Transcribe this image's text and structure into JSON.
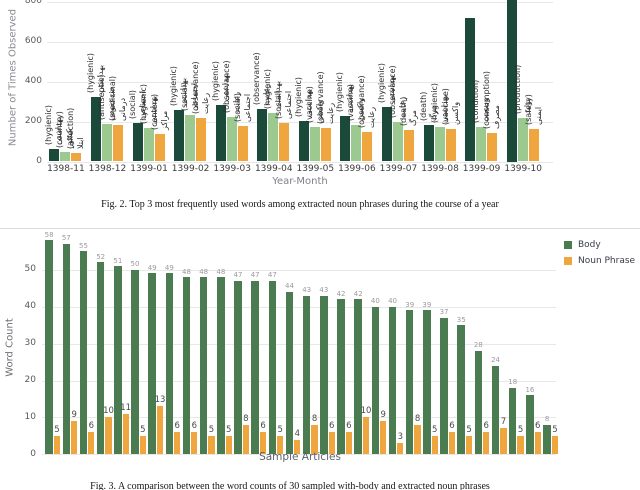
{
  "chart_data": [
    {
      "type": "bar",
      "title": "Fig. 2. Top 3 most frequently used words among extracted noun phrases during the course of a year",
      "xlabel": "Year-Month",
      "ylabel": "Number of Times Observed",
      "yticks": [
        0,
        200,
        400,
        600,
        800
      ],
      "ylim": [
        0,
        810
      ],
      "grid": true,
      "legend_position": "none",
      "bar_colors": [
        "#1c4a3a",
        "#9cc98f",
        "#f0a63e"
      ],
      "groups": [
        {
          "month": "1398-11",
          "bars": [
            {
              "word": "بهداشتی",
              "translation": "(hygienic)",
              "value": 62
            },
            {
              "word": "کشور",
              "translation": "(country)",
              "value": 46
            },
            {
              "word": "ابتلا",
              "translation": "(affection)",
              "value": 45
            }
          ]
        },
        {
          "month": "1398-12",
          "bars": [
            {
              "word": "بهداشتی",
              "translation": "(hygienic)",
              "value": 322
            },
            {
              "word": "ضدعفونی",
              "translation": "(antiseptic)",
              "value": 187
            },
            {
              "word": "درمانی",
              "translation": "(medicinal)",
              "value": 184
            }
          ]
        },
        {
          "month": "1399-01",
          "bars": [
            {
              "word": "اجتماعی",
              "translation": "(social)",
              "value": 192
            },
            {
              "word": "بهداشتی",
              "translation": "(hygienic)",
              "value": 168
            },
            {
              "word": "مراکز",
              "translation": "(centers)",
              "value": 137
            }
          ]
        },
        {
          "month": "1399-02",
          "bars": [
            {
              "word": "بهداشتی",
              "translation": "(hygienic)",
              "value": 259
            },
            {
              "word": "اجتماعی",
              "translation": "(social)",
              "value": 232
            },
            {
              "word": "رعایت",
              "translation": "(observance)",
              "value": 216
            }
          ]
        },
        {
          "month": "1399-03",
          "bars": [
            {
              "word": "بهداشتی",
              "translation": "(hygienic)",
              "value": 284
            },
            {
              "word": "رعایت",
              "translation": "(observance)",
              "value": 222
            },
            {
              "word": "اجتماعی",
              "translation": "(social)",
              "value": 178
            }
          ]
        },
        {
          "month": "1399-04",
          "bars": [
            {
              "word": "رعایت",
              "translation": "(observance)",
              "value": 263
            },
            {
              "word": "بهداشتی",
              "translation": "(hygienic)",
              "value": 244
            },
            {
              "word": "اجتماعی",
              "translation": "(social)",
              "value": 195
            }
          ]
        },
        {
          "month": "1399-05",
          "bars": [
            {
              "word": "بهداشتی",
              "translation": "(hygienic)",
              "value": 205
            },
            {
              "word": "واکسن",
              "translation": "(vaccine)",
              "value": 171
            },
            {
              "word": "رعایت",
              "translation": "(observance)",
              "value": 170
            }
          ]
        },
        {
          "month": "1399-06",
          "bars": [
            {
              "word": "بهداشتی",
              "translation": "(hygienic)",
              "value": 230
            },
            {
              "word": "واکسن",
              "translation": "(vaccine)",
              "value": 182
            },
            {
              "word": "رعایت",
              "translation": "(observance)",
              "value": 148
            }
          ]
        },
        {
          "month": "1399-07",
          "bars": [
            {
              "word": "بهداشتی",
              "translation": "(hygienic)",
              "value": 274
            },
            {
              "word": "رعایت",
              "translation": "(observance)",
              "value": 200
            },
            {
              "word": "مرگ",
              "translation": "(death)",
              "value": 160
            }
          ]
        },
        {
          "month": "1399-08",
          "bars": [
            {
              "word": "مرگ",
              "translation": "(death)",
              "value": 181
            },
            {
              "word": "بهداشتی",
              "translation": "(hygienic)",
              "value": 173
            },
            {
              "word": "واکسن",
              "translation": "(vaccine)",
              "value": 162
            }
          ]
        },
        {
          "month": "1399-09",
          "bars": [
            {
              "word": "",
              "translation": "",
              "value": 720,
              "label_cut": true
            },
            {
              "word": "وضعیت",
              "translation": "(condition)",
              "value": 173
            },
            {
              "word": "مصرف",
              "translation": "(consumption)",
              "value": 145
            }
          ]
        },
        {
          "month": "1399-10",
          "bars": [
            {
              "word": "",
              "translation": "",
              "value": 865,
              "label_cut": true,
              "clipped": true
            },
            {
              "word": "تولید",
              "translation": "(production)",
              "value": 219
            },
            {
              "word": "ایمنی",
              "translation": "(safety)",
              "value": 161
            }
          ]
        }
      ]
    },
    {
      "type": "bar",
      "title": "Fig. 3. A comparison between the word counts of 30 sampled with-body and extracted noun phrases",
      "xlabel": "Sample Articles",
      "ylabel": "Word Count",
      "yticks": [
        0,
        10,
        20,
        30,
        40,
        50
      ],
      "ylim": [
        0,
        58
      ],
      "grid": true,
      "legend_position": "top-right",
      "series": [
        {
          "name": "Body",
          "color": "#4b7b50",
          "values": [
            58,
            57,
            55,
            52,
            51,
            50,
            49,
            49,
            48,
            48,
            48,
            47,
            47,
            47,
            44,
            43,
            43,
            42,
            42,
            40,
            40,
            39,
            39,
            37,
            35,
            28,
            24,
            18,
            16,
            8
          ]
        },
        {
          "name": "Noun Phrase",
          "color": "#f0a63e",
          "values": [
            5,
            9,
            6,
            10,
            11,
            5,
            13,
            6,
            6,
            5,
            5,
            8,
            6,
            5,
            4,
            8,
            6,
            6,
            10,
            9,
            3,
            8,
            5,
            6,
            5,
            6,
            7,
            5,
            6,
            5
          ]
        }
      ]
    }
  ]
}
